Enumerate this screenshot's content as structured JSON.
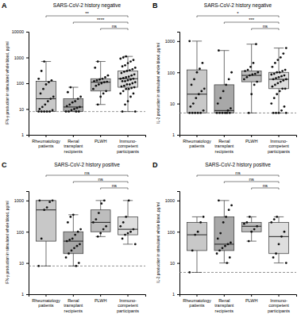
{
  "chart_data": [
    {
      "type": "box",
      "panel": "A",
      "title": "SARS-CoV-2 history negative",
      "ylabel": "IFN-γ production in stimulated whole blood, pg/ml",
      "categories": [
        "Rheumatology\npatients",
        "Renal\ntransplant\nrecipients",
        "PLWH",
        "Immuno-\ncompetent\nparticipants"
      ],
      "colors": [
        "#c8c8c8",
        "#a8a8a8",
        "#bdbdbd",
        "#dedede"
      ],
      "log": "y",
      "ylim": [
        1,
        10000
      ],
      "yticks": [
        1,
        10,
        100,
        1000,
        10000
      ],
      "threshold": 8,
      "boxes": [
        {
          "whislo": 8,
          "q1": 8,
          "med": 25,
          "q3": 120,
          "whishi": 700,
          "points": [
            8,
            8,
            8,
            8,
            8,
            9,
            10,
            12,
            15,
            20,
            25,
            30,
            40,
            60,
            90,
            110,
            130,
            150,
            300,
            700
          ]
        },
        {
          "whislo": 8,
          "q1": 8,
          "med": 12,
          "q3": 25,
          "whishi": 70,
          "points": [
            8,
            8,
            8,
            8,
            9,
            10,
            11,
            12,
            13,
            15,
            18,
            20,
            25,
            30,
            45,
            70
          ]
        },
        {
          "whislo": 15,
          "q1": 50,
          "med": 110,
          "q3": 150,
          "whishi": 700,
          "points": [
            15,
            30,
            40,
            50,
            60,
            80,
            90,
            100,
            110,
            115,
            120,
            130,
            140,
            150,
            170,
            200,
            400,
            700
          ]
        },
        {
          "whislo": 8,
          "q1": 70,
          "med": 150,
          "q3": 300,
          "whishi": 1100,
          "points": [
            8,
            8,
            15,
            20,
            30,
            40,
            40,
            50,
            60,
            60,
            65,
            70,
            75,
            80,
            90,
            90,
            100,
            110,
            120,
            120,
            130,
            140,
            150,
            150,
            160,
            170,
            180,
            200,
            220,
            250,
            280,
            300,
            320,
            350,
            400,
            450,
            500,
            600,
            700,
            800,
            900,
            1000,
            1100
          ]
        }
      ],
      "comparisons": [
        {
          "groups": [
            0,
            3
          ],
          "label": "**"
        },
        {
          "groups": [
            1,
            3
          ],
          "label": "****"
        },
        {
          "groups": [
            2,
            3
          ],
          "label": "ns"
        }
      ]
    },
    {
      "type": "box",
      "panel": "B",
      "title": "SARS-CoV-2 history negative",
      "ylabel": "IL-2 production in stimulated whole blood, pg/ml",
      "categories": [
        "Rheumatology\npatients",
        "Renal\ntransplant\nrecipients",
        "PLWH",
        "Immuno-\ncompetent\nparticipants"
      ],
      "colors": [
        "#c8c8c8",
        "#a8a8a8",
        "#bdbdbd",
        "#dedede"
      ],
      "log": "y",
      "ylim": [
        1,
        2000
      ],
      "yticks": [
        1,
        10,
        100,
        1000
      ],
      "threshold": 5,
      "boxes": [
        {
          "whislo": 5,
          "q1": 5,
          "med": 20,
          "q3": 120,
          "whishi": 1000,
          "points": [
            5,
            5,
            5,
            5,
            5,
            6,
            8,
            10,
            15,
            20,
            25,
            30,
            40,
            60,
            100,
            130,
            200,
            1000
          ]
        },
        {
          "whislo": 5,
          "q1": 5,
          "med": 6,
          "q3": 40,
          "whishi": 500,
          "points": [
            5,
            5,
            5,
            5,
            5,
            5,
            6,
            7,
            10,
            15,
            25,
            40,
            60,
            100,
            500
          ]
        },
        {
          "whislo": 5,
          "q1": 50,
          "med": 80,
          "q3": 110,
          "whishi": 800,
          "points": [
            5,
            20,
            40,
            50,
            60,
            70,
            80,
            85,
            90,
            100,
            110,
            120,
            150,
            200,
            800
          ]
        },
        {
          "whislo": 5,
          "q1": 30,
          "med": 60,
          "q3": 100,
          "whishi": 600,
          "points": [
            5,
            5,
            5,
            5,
            6,
            8,
            10,
            15,
            20,
            25,
            30,
            30,
            35,
            40,
            45,
            50,
            55,
            60,
            60,
            65,
            70,
            75,
            80,
            85,
            90,
            100,
            100,
            110,
            120,
            150,
            200,
            250,
            300,
            400,
            600
          ]
        }
      ],
      "comparisons": [
        {
          "groups": [
            0,
            3
          ],
          "label": "*"
        },
        {
          "groups": [
            1,
            3
          ],
          "label": "***"
        },
        {
          "groups": [
            2,
            3
          ],
          "label": "ns"
        }
      ]
    },
    {
      "type": "box",
      "panel": "C",
      "title": "SARS-CoV-2 history positive",
      "ylabel": "IFN-γ production in stimulated whole blood, pg/ml",
      "categories": [
        "Rheumatology\npatients",
        "Renal\ntransplant\nrecipients",
        "PLWH",
        "Immuno-\ncompetent\nparticipants"
      ],
      "colors": [
        "#c8c8c8",
        "#a8a8a8",
        "#bdbdbd",
        "#dedede"
      ],
      "log": "y",
      "ylim": [
        1,
        2000
      ],
      "yticks": [
        1,
        10,
        100,
        1000
      ],
      "threshold": 8,
      "boxes": [
        {
          "whislo": 8,
          "q1": 50,
          "med": 500,
          "q3": 1000,
          "whishi": 1000,
          "points": [
            8,
            60,
            500,
            600,
            900,
            1000,
            1000
          ]
        },
        {
          "whislo": 8,
          "q1": 20,
          "med": 50,
          "q3": 100,
          "whishi": 350,
          "points": [
            8,
            10,
            15,
            20,
            25,
            30,
            35,
            40,
            50,
            55,
            60,
            80,
            100,
            120,
            200,
            300,
            350
          ]
        },
        {
          "whislo": 70,
          "q1": 100,
          "med": 200,
          "q3": 500,
          "whishi": 1000,
          "points": [
            70,
            90,
            120,
            150,
            200,
            250,
            400,
            800,
            1000
          ]
        },
        {
          "whislo": 40,
          "q1": 80,
          "med": 120,
          "q3": 300,
          "whishi": 1000,
          "points": [
            40,
            60,
            80,
            90,
            100,
            120,
            150,
            200,
            300,
            1000
          ]
        }
      ],
      "comparisons": [
        {
          "groups": [
            0,
            3
          ],
          "label": "ns"
        },
        {
          "groups": [
            1,
            3
          ],
          "label": "ns"
        },
        {
          "groups": [
            2,
            3
          ],
          "label": "ns"
        }
      ]
    },
    {
      "type": "box",
      "panel": "D",
      "title": "SARS-CoV-2 history positive",
      "ylabel": "IL-2 production in stimulated whole blood, pg/ml",
      "categories": [
        "Rheumatology\npatients",
        "Renal\ntransplant\nrecipients",
        "PLWH",
        "Immuno-\ncompetent\nparticipants"
      ],
      "colors": [
        "#c8c8c8",
        "#a8a8a8",
        "#bdbdbd",
        "#dedede"
      ],
      "log": "y",
      "ylim": [
        1,
        2000
      ],
      "yticks": [
        1,
        10,
        100,
        1000
      ],
      "threshold": 5,
      "boxes": [
        {
          "whislo": 5,
          "q1": 25,
          "med": 80,
          "q3": 200,
          "whishi": 300,
          "points": [
            5,
            25,
            80,
            100,
            200,
            300
          ]
        },
        {
          "whislo": 10,
          "q1": 25,
          "med": 40,
          "q3": 300,
          "whishi": 1000,
          "points": [
            10,
            15,
            20,
            25,
            30,
            35,
            40,
            45,
            60,
            90,
            200,
            300,
            500,
            700,
            1000
          ]
        },
        {
          "whislo": 50,
          "q1": 100,
          "med": 150,
          "q3": 200,
          "whishi": 300,
          "points": [
            50,
            100,
            120,
            150,
            180,
            200,
            300
          ]
        },
        {
          "whislo": 10,
          "q1": 20,
          "med": 70,
          "q3": 200,
          "whishi": 300,
          "points": [
            10,
            15,
            20,
            40,
            70,
            100,
            200,
            250,
            300
          ]
        }
      ],
      "comparisons": [
        {
          "groups": [
            0,
            3
          ],
          "label": "ns"
        },
        {
          "groups": [
            1,
            3
          ],
          "label": "ns"
        },
        {
          "groups": [
            2,
            3
          ],
          "label": "ns"
        }
      ]
    }
  ]
}
